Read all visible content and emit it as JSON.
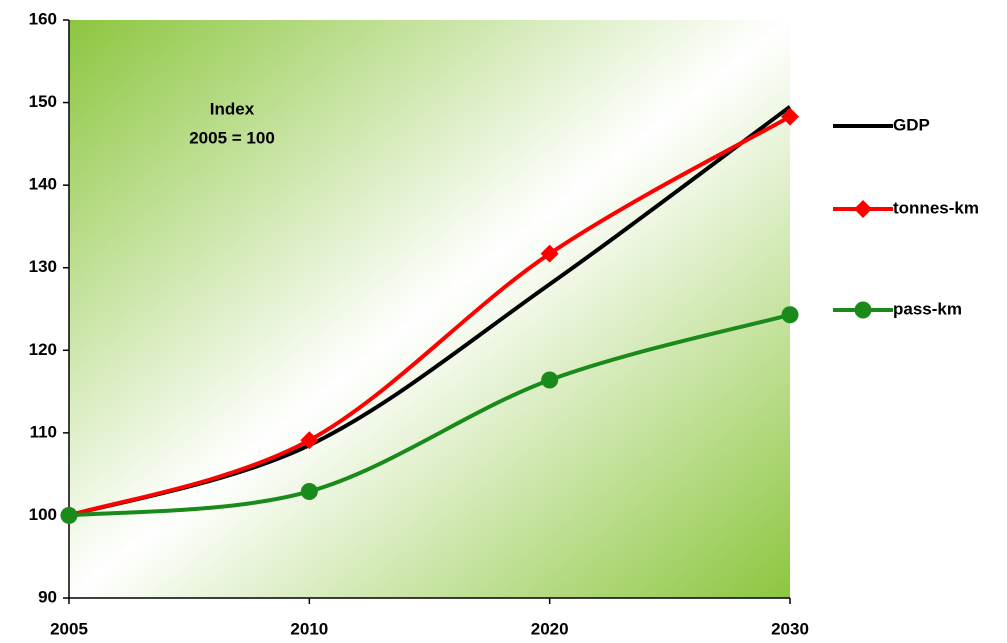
{
  "chart_data": {
    "type": "line",
    "annotation": [
      "Index",
      "2005 = 100"
    ],
    "categories": [
      "2005",
      "2010",
      "2020",
      "2030"
    ],
    "series": [
      {
        "name": "GDP",
        "color": "#000000",
        "marker": "none",
        "values": [
          100,
          108.5,
          128,
          149.5
        ]
      },
      {
        "name": "tonnes-km",
        "color": "#ff0000",
        "marker": "diamond",
        "values": [
          100,
          109.1,
          131.7,
          148.3
        ]
      },
      {
        "name": "pass-km",
        "color": "#1a8a1a",
        "marker": "circle",
        "values": [
          100,
          102.9,
          116.4,
          124.3
        ]
      }
    ],
    "ylim": [
      90,
      160
    ],
    "yticks": [
      90,
      100,
      110,
      120,
      130,
      140,
      150,
      160
    ],
    "legend": "right"
  }
}
